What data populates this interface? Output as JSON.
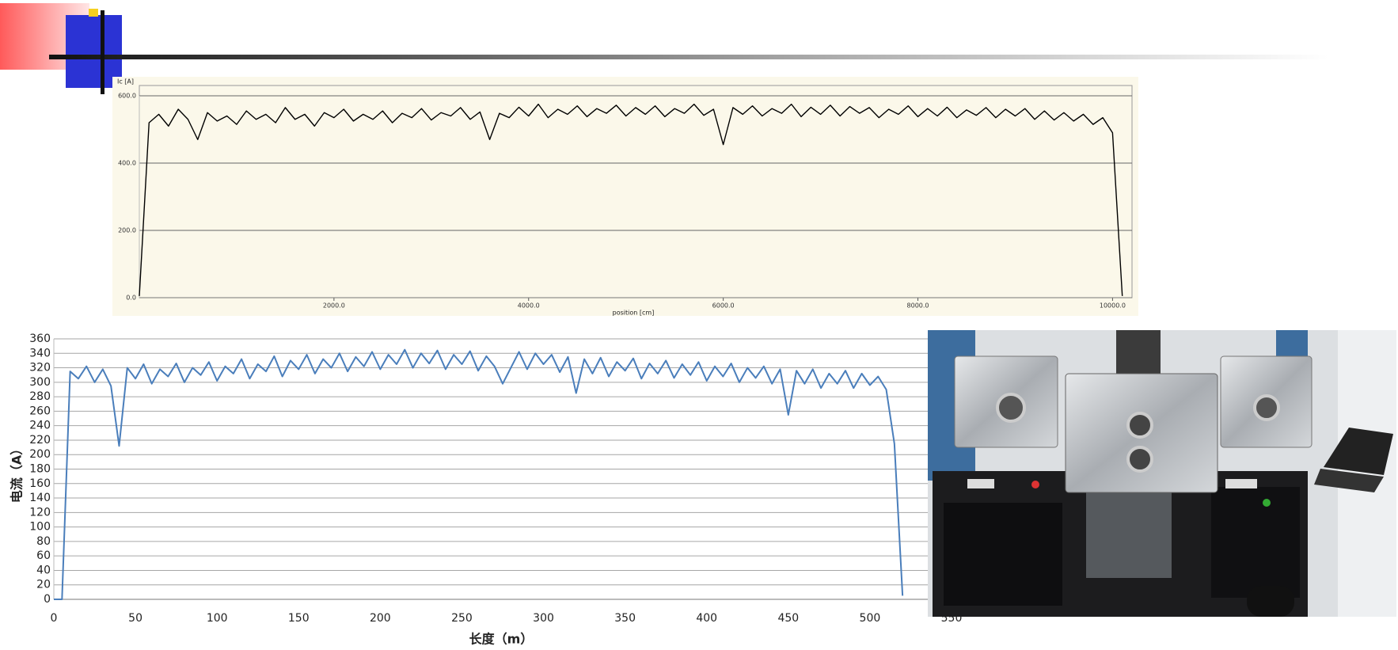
{
  "chart_data": [
    {
      "type": "line",
      "y_label": "Ic [A]",
      "x_label": "position [cm]",
      "color": "#000000",
      "grid": true,
      "xlim": [
        0,
        10200
      ],
      "ylim": [
        0,
        600
      ],
      "xticks": [
        {
          "value": 2000,
          "label": "2000.0"
        },
        {
          "value": 4000,
          "label": "4000.0"
        },
        {
          "value": 6000,
          "label": "6000.0"
        },
        {
          "value": 8000,
          "label": "8000.0"
        },
        {
          "value": 10000,
          "label": "10000.0"
        }
      ],
      "yticks": [
        {
          "value": 0,
          "label": "0.0"
        },
        {
          "value": 200,
          "label": "200.0"
        },
        {
          "value": 400,
          "label": "400.0"
        },
        {
          "value": 600,
          "label": "600.0"
        }
      ],
      "x": [
        0,
        100,
        200,
        300,
        400,
        500,
        600,
        700,
        800,
        900,
        1000,
        1100,
        1200,
        1300,
        1400,
        1500,
        1600,
        1700,
        1800,
        1900,
        2000,
        2100,
        2200,
        2300,
        2400,
        2500,
        2600,
        2700,
        2800,
        2900,
        3000,
        3100,
        3200,
        3300,
        3400,
        3500,
        3600,
        3700,
        3800,
        3900,
        4000,
        4100,
        4200,
        4300,
        4400,
        4500,
        4600,
        4700,
        4800,
        4900,
        5000,
        5100,
        5200,
        5300,
        5400,
        5500,
        5600,
        5700,
        5800,
        5900,
        6000,
        6100,
        6200,
        6300,
        6400,
        6500,
        6600,
        6700,
        6800,
        6900,
        7000,
        7100,
        7200,
        7300,
        7400,
        7500,
        7600,
        7700,
        7800,
        7900,
        8000,
        8100,
        8200,
        8300,
        8400,
        8500,
        8600,
        8700,
        8800,
        8900,
        9000,
        9100,
        9200,
        9300,
        9400,
        9500,
        9600,
        9700,
        9800,
        9900,
        10000,
        10100
      ],
      "values": [
        5,
        520,
        545,
        510,
        560,
        530,
        470,
        550,
        525,
        540,
        515,
        555,
        530,
        545,
        520,
        565,
        530,
        545,
        510,
        550,
        535,
        560,
        525,
        545,
        530,
        555,
        520,
        548,
        535,
        562,
        528,
        550,
        540,
        565,
        530,
        552,
        470,
        548,
        535,
        566,
        540,
        575,
        535,
        560,
        545,
        570,
        538,
        562,
        548,
        572,
        540,
        565,
        545,
        570,
        538,
        562,
        548,
        575,
        542,
        560,
        455,
        565,
        545,
        570,
        540,
        562,
        548,
        575,
        538,
        566,
        545,
        572,
        540,
        568,
        548,
        565,
        535,
        560,
        545,
        570,
        538,
        562,
        540,
        566,
        535,
        558,
        542,
        565,
        535,
        560,
        540,
        562,
        530,
        555,
        528,
        550,
        525,
        545,
        515,
        535,
        490,
        5
      ]
    },
    {
      "type": "line",
      "y_label": "电流（A）",
      "x_label": "长度（m）",
      "color": "#4a7ebb",
      "grid": true,
      "xlim": [
        0,
        550
      ],
      "ylim": [
        0,
        360
      ],
      "xticks": [
        0,
        50,
        100,
        150,
        200,
        250,
        300,
        350,
        400,
        450,
        500,
        550
      ],
      "yticks": [
        0,
        20,
        40,
        60,
        80,
        100,
        120,
        140,
        160,
        180,
        200,
        220,
        240,
        260,
        280,
        300,
        320,
        340,
        360
      ],
      "x": [
        0,
        5,
        10,
        15,
        20,
        25,
        30,
        35,
        40,
        45,
        50,
        55,
        60,
        65,
        70,
        75,
        80,
        85,
        90,
        95,
        100,
        105,
        110,
        115,
        120,
        125,
        130,
        135,
        140,
        145,
        150,
        155,
        160,
        165,
        170,
        175,
        180,
        185,
        190,
        195,
        200,
        205,
        210,
        215,
        220,
        225,
        230,
        235,
        240,
        245,
        250,
        255,
        260,
        265,
        270,
        275,
        280,
        285,
        290,
        295,
        300,
        305,
        310,
        315,
        320,
        325,
        330,
        335,
        340,
        345,
        350,
        355,
        360,
        365,
        370,
        375,
        380,
        385,
        390,
        395,
        400,
        405,
        410,
        415,
        420,
        425,
        430,
        435,
        440,
        445,
        450,
        455,
        460,
        465,
        470,
        475,
        480,
        485,
        490,
        495,
        500,
        505,
        510,
        515,
        520
      ],
      "values": [
        0,
        0,
        315,
        305,
        322,
        300,
        318,
        295,
        212,
        320,
        305,
        325,
        298,
        318,
        308,
        326,
        300,
        320,
        310,
        328,
        302,
        322,
        312,
        332,
        305,
        325,
        315,
        336,
        308,
        330,
        318,
        338,
        312,
        332,
        320,
        340,
        315,
        335,
        322,
        342,
        318,
        338,
        325,
        345,
        320,
        340,
        326,
        344,
        318,
        338,
        325,
        343,
        316,
        336,
        322,
        298,
        320,
        342,
        318,
        340,
        325,
        338,
        314,
        335,
        285,
        332,
        312,
        334,
        308,
        328,
        316,
        333,
        305,
        326,
        312,
        330,
        306,
        325,
        310,
        328,
        302,
        322,
        308,
        326,
        300,
        320,
        306,
        322,
        298,
        318,
        255,
        316,
        298,
        318,
        292,
        312,
        298,
        316,
        292,
        312,
        296,
        308,
        290,
        215,
        5
      ]
    }
  ]
}
